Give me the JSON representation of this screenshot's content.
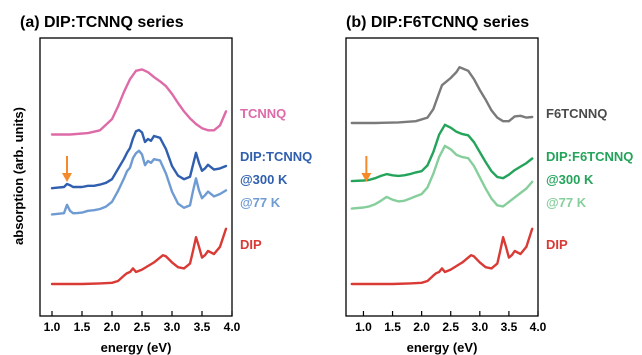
{
  "ylabel": "absorption (arb. units)",
  "colors": {
    "acceptor_a": "#de6aa8",
    "acceptor_b": "#7a7a7a",
    "dip": "#d93a35",
    "arrow": "#f58a2a",
    "a_300": "#2f5fae",
    "a_77": "#6f9bd3",
    "b_300": "#24a35a",
    "b_77": "#86cf9c"
  },
  "chart_data": [
    {
      "type": "line",
      "title": "(a) DIP:TCNNQ series",
      "xlabel": "energy (eV)",
      "xlim": [
        0.8,
        4.0
      ],
      "xticks": [
        "1.0",
        "1.5",
        "2.0",
        "2.5",
        "3.0",
        "3.5",
        "4.0"
      ],
      "arrow_at_eV": 1.25,
      "series": [
        {
          "name": "TCNNQ",
          "color": "#de6aa8",
          "x": [
            1.0,
            1.3,
            1.6,
            1.8,
            2.0,
            2.1,
            2.2,
            2.3,
            2.4,
            2.5,
            2.6,
            2.7,
            2.8,
            2.9,
            3.0,
            3.1,
            3.2,
            3.3,
            3.4,
            3.5,
            3.6,
            3.7,
            3.8,
            3.9
          ],
          "y": [
            0.05,
            0.05,
            0.07,
            0.11,
            0.27,
            0.45,
            0.66,
            0.84,
            0.96,
            0.98,
            0.94,
            0.87,
            0.81,
            0.74,
            0.63,
            0.5,
            0.38,
            0.28,
            0.2,
            0.14,
            0.11,
            0.11,
            0.18,
            0.38
          ]
        },
        {
          "name": "DIP:TCNNQ",
          "color": "#2f5fae",
          "x": [
            1.0,
            1.1,
            1.2,
            1.25,
            1.3,
            1.35,
            1.4,
            1.5,
            1.6,
            1.7,
            1.8,
            1.9,
            2.0,
            2.1,
            2.2,
            2.25,
            2.3,
            2.35,
            2.4,
            2.45,
            2.5,
            2.55,
            2.6,
            2.65,
            2.7,
            2.8,
            2.9,
            3.0,
            3.1,
            3.2,
            3.3,
            3.35,
            3.4,
            3.45,
            3.5,
            3.55,
            3.6,
            3.7,
            3.8,
            3.9
          ],
          "y": [
            0.03,
            0.04,
            0.05,
            0.1,
            0.08,
            0.05,
            0.05,
            0.05,
            0.07,
            0.07,
            0.09,
            0.12,
            0.18,
            0.35,
            0.52,
            0.62,
            0.7,
            0.86,
            0.98,
            1.0,
            0.96,
            0.8,
            0.85,
            0.82,
            0.9,
            0.87,
            0.68,
            0.4,
            0.24,
            0.18,
            0.22,
            0.42,
            0.62,
            0.45,
            0.32,
            0.36,
            0.42,
            0.34,
            0.36,
            0.4
          ]
        },
        {
          "name": "@77 K",
          "color": "#6f9bd3",
          "x": [
            1.0,
            1.1,
            1.2,
            1.25,
            1.3,
            1.35,
            1.4,
            1.5,
            1.6,
            1.7,
            1.8,
            1.9,
            2.0,
            2.1,
            2.2,
            2.25,
            2.3,
            2.35,
            2.4,
            2.45,
            2.5,
            2.55,
            2.6,
            2.65,
            2.7,
            2.8,
            2.9,
            3.0,
            3.1,
            3.2,
            3.3,
            3.35,
            3.4,
            3.45,
            3.5,
            3.55,
            3.6,
            3.7,
            3.8,
            3.9
          ],
          "y": [
            0.06,
            0.07,
            0.08,
            0.22,
            0.12,
            0.08,
            0.08,
            0.09,
            0.12,
            0.13,
            0.15,
            0.19,
            0.27,
            0.45,
            0.66,
            0.78,
            0.84,
            1.0,
            1.08,
            1.12,
            1.06,
            0.88,
            0.95,
            0.92,
            0.98,
            0.96,
            0.74,
            0.44,
            0.24,
            0.17,
            0.21,
            0.45,
            0.66,
            0.46,
            0.33,
            0.38,
            0.44,
            0.36,
            0.4,
            0.46
          ]
        },
        {
          "name": "DIP",
          "color": "#d93a35",
          "x": [
            1.0,
            1.5,
            1.8,
            2.0,
            2.1,
            2.2,
            2.25,
            2.3,
            2.35,
            2.4,
            2.5,
            2.6,
            2.7,
            2.8,
            2.85,
            2.9,
            3.0,
            3.1,
            3.2,
            3.3,
            3.35,
            3.4,
            3.45,
            3.5,
            3.55,
            3.6,
            3.7,
            3.8,
            3.9
          ],
          "y": [
            0.0,
            0.0,
            0.01,
            0.02,
            0.05,
            0.14,
            0.18,
            0.2,
            0.26,
            0.2,
            0.24,
            0.3,
            0.36,
            0.44,
            0.48,
            0.46,
            0.36,
            0.28,
            0.26,
            0.34,
            0.55,
            0.78,
            0.62,
            0.44,
            0.48,
            0.55,
            0.5,
            0.62,
            0.92
          ]
        }
      ]
    },
    {
      "type": "line",
      "title": "(b) DIP:F6TCNNQ series",
      "xlabel": "energy (eV)",
      "xlim": [
        0.7,
        4.0
      ],
      "xticks": [
        "1.0",
        "1.5",
        "2.0",
        "2.5",
        "3.0",
        "3.5",
        "4.0"
      ],
      "arrow_at_eV": 1.05,
      "series": [
        {
          "name": "F6TCNNQ",
          "color": "#7a7a7a",
          "x": [
            0.8,
            1.2,
            1.6,
            1.9,
            2.1,
            2.2,
            2.3,
            2.35,
            2.4,
            2.5,
            2.6,
            2.65,
            2.7,
            2.8,
            2.9,
            3.0,
            3.1,
            3.2,
            3.3,
            3.4,
            3.5,
            3.6,
            3.7,
            3.8,
            3.9
          ],
          "y": [
            0.05,
            0.05,
            0.06,
            0.08,
            0.14,
            0.28,
            0.55,
            0.68,
            0.72,
            0.8,
            0.9,
            0.98,
            0.96,
            0.92,
            0.78,
            0.6,
            0.44,
            0.26,
            0.14,
            0.08,
            0.08,
            0.16,
            0.17,
            0.14,
            0.15
          ]
        },
        {
          "name": "DIP:F6TCNNQ",
          "color": "#24a35a",
          "x": [
            0.8,
            1.0,
            1.1,
            1.2,
            1.3,
            1.4,
            1.5,
            1.6,
            1.7,
            1.8,
            1.9,
            2.0,
            2.1,
            2.2,
            2.3,
            2.4,
            2.5,
            2.6,
            2.7,
            2.8,
            2.9,
            3.0,
            3.1,
            3.2,
            3.3,
            3.4,
            3.5,
            3.6,
            3.7,
            3.8,
            3.9
          ],
          "y": [
            0.05,
            0.06,
            0.07,
            0.1,
            0.14,
            0.17,
            0.15,
            0.14,
            0.15,
            0.17,
            0.2,
            0.22,
            0.32,
            0.55,
            0.85,
            1.02,
            0.97,
            0.9,
            0.86,
            0.84,
            0.72,
            0.55,
            0.38,
            0.22,
            0.12,
            0.1,
            0.16,
            0.24,
            0.3,
            0.36,
            0.44
          ]
        },
        {
          "name": "@77 K",
          "color": "#86cf9c",
          "x": [
            0.8,
            1.0,
            1.1,
            1.2,
            1.3,
            1.4,
            1.5,
            1.6,
            1.7,
            1.8,
            1.9,
            2.0,
            2.1,
            2.2,
            2.3,
            2.4,
            2.5,
            2.6,
            2.7,
            2.8,
            2.9,
            3.0,
            3.1,
            3.2,
            3.3,
            3.4,
            3.5,
            3.6,
            3.7,
            3.8,
            3.9
          ],
          "y": [
            0.06,
            0.08,
            0.1,
            0.14,
            0.2,
            0.27,
            0.22,
            0.19,
            0.2,
            0.24,
            0.28,
            0.32,
            0.44,
            0.68,
            0.98,
            1.18,
            1.12,
            1.02,
            0.98,
            0.96,
            0.82,
            0.62,
            0.42,
            0.24,
            0.12,
            0.1,
            0.18,
            0.26,
            0.34,
            0.42,
            0.54
          ]
        },
        {
          "name": "DIP",
          "color": "#d93a35",
          "x": [
            0.8,
            1.5,
            1.8,
            2.0,
            2.1,
            2.2,
            2.25,
            2.3,
            2.35,
            2.4,
            2.5,
            2.6,
            2.7,
            2.8,
            2.85,
            2.9,
            3.0,
            3.1,
            3.2,
            3.3,
            3.35,
            3.4,
            3.45,
            3.5,
            3.55,
            3.6,
            3.7,
            3.8,
            3.9
          ],
          "y": [
            0.0,
            0.0,
            0.01,
            0.02,
            0.05,
            0.14,
            0.18,
            0.2,
            0.26,
            0.2,
            0.24,
            0.3,
            0.36,
            0.44,
            0.48,
            0.46,
            0.36,
            0.28,
            0.26,
            0.34,
            0.55,
            0.78,
            0.62,
            0.44,
            0.48,
            0.55,
            0.5,
            0.62,
            0.92
          ]
        }
      ]
    }
  ],
  "labels": {
    "a": [
      {
        "key": "tcnnq",
        "text": "TCNNQ",
        "color": "#de6aa8"
      },
      {
        "key": "complex",
        "text": "DIP:TCNNQ",
        "color": "#2f5fae"
      },
      {
        "key": "t300",
        "text": "@300 K",
        "color": "#2f5fae"
      },
      {
        "key": "t77",
        "text": "@77 K",
        "color": "#6f9bd3"
      },
      {
        "key": "dip",
        "text": "DIP",
        "color": "#d93a35"
      }
    ],
    "b": [
      {
        "key": "f6",
        "text": "F6TCNNQ",
        "color": "#4a4a4a"
      },
      {
        "key": "complex",
        "text": "DIP:F6TCNNQ",
        "color": "#24a35a"
      },
      {
        "key": "t300",
        "text": "@300 K",
        "color": "#24a35a"
      },
      {
        "key": "t77",
        "text": "@77 K",
        "color": "#86cf9c"
      },
      {
        "key": "dip",
        "text": "DIP",
        "color": "#d93a35"
      }
    ]
  }
}
